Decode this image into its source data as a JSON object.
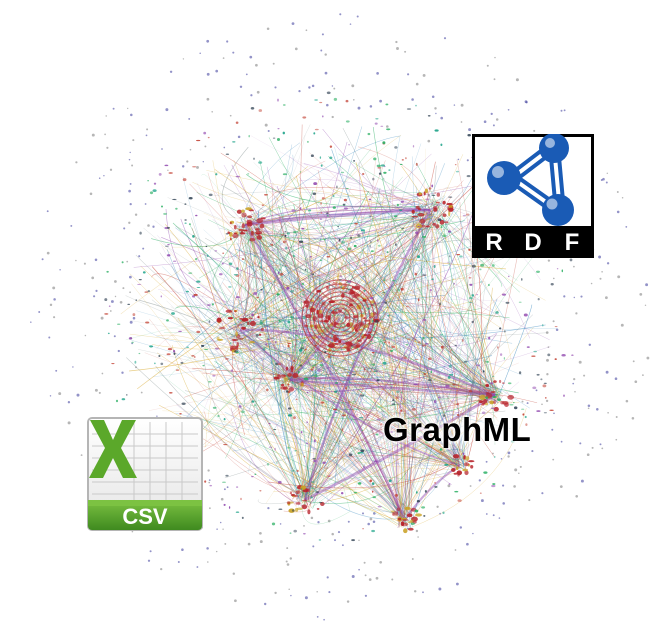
{
  "canvas": {
    "background": "#ffffff"
  },
  "network": {
    "edge_colors": [
      "#c0392b",
      "#8e44ad",
      "#27ae60",
      "#2980b9",
      "#d4a017",
      "#7f8c8d"
    ],
    "node_colors": [
      "#c0392b",
      "#16a085",
      "#2c3e50",
      "#8e44ad",
      "#27ae60"
    ],
    "hub_color": "#b7222a"
  },
  "rdf_logo": {
    "letters": [
      "R",
      "D",
      "F"
    ],
    "icon": "rdf-logo-icon",
    "molecule_color": "#1a5bb5",
    "frame_color": "#000000"
  },
  "graphml": {
    "label": "GraphML"
  },
  "csv": {
    "label": "CSV",
    "icon": "spreadsheet-file-icon",
    "accent": "#5a9e2a"
  }
}
